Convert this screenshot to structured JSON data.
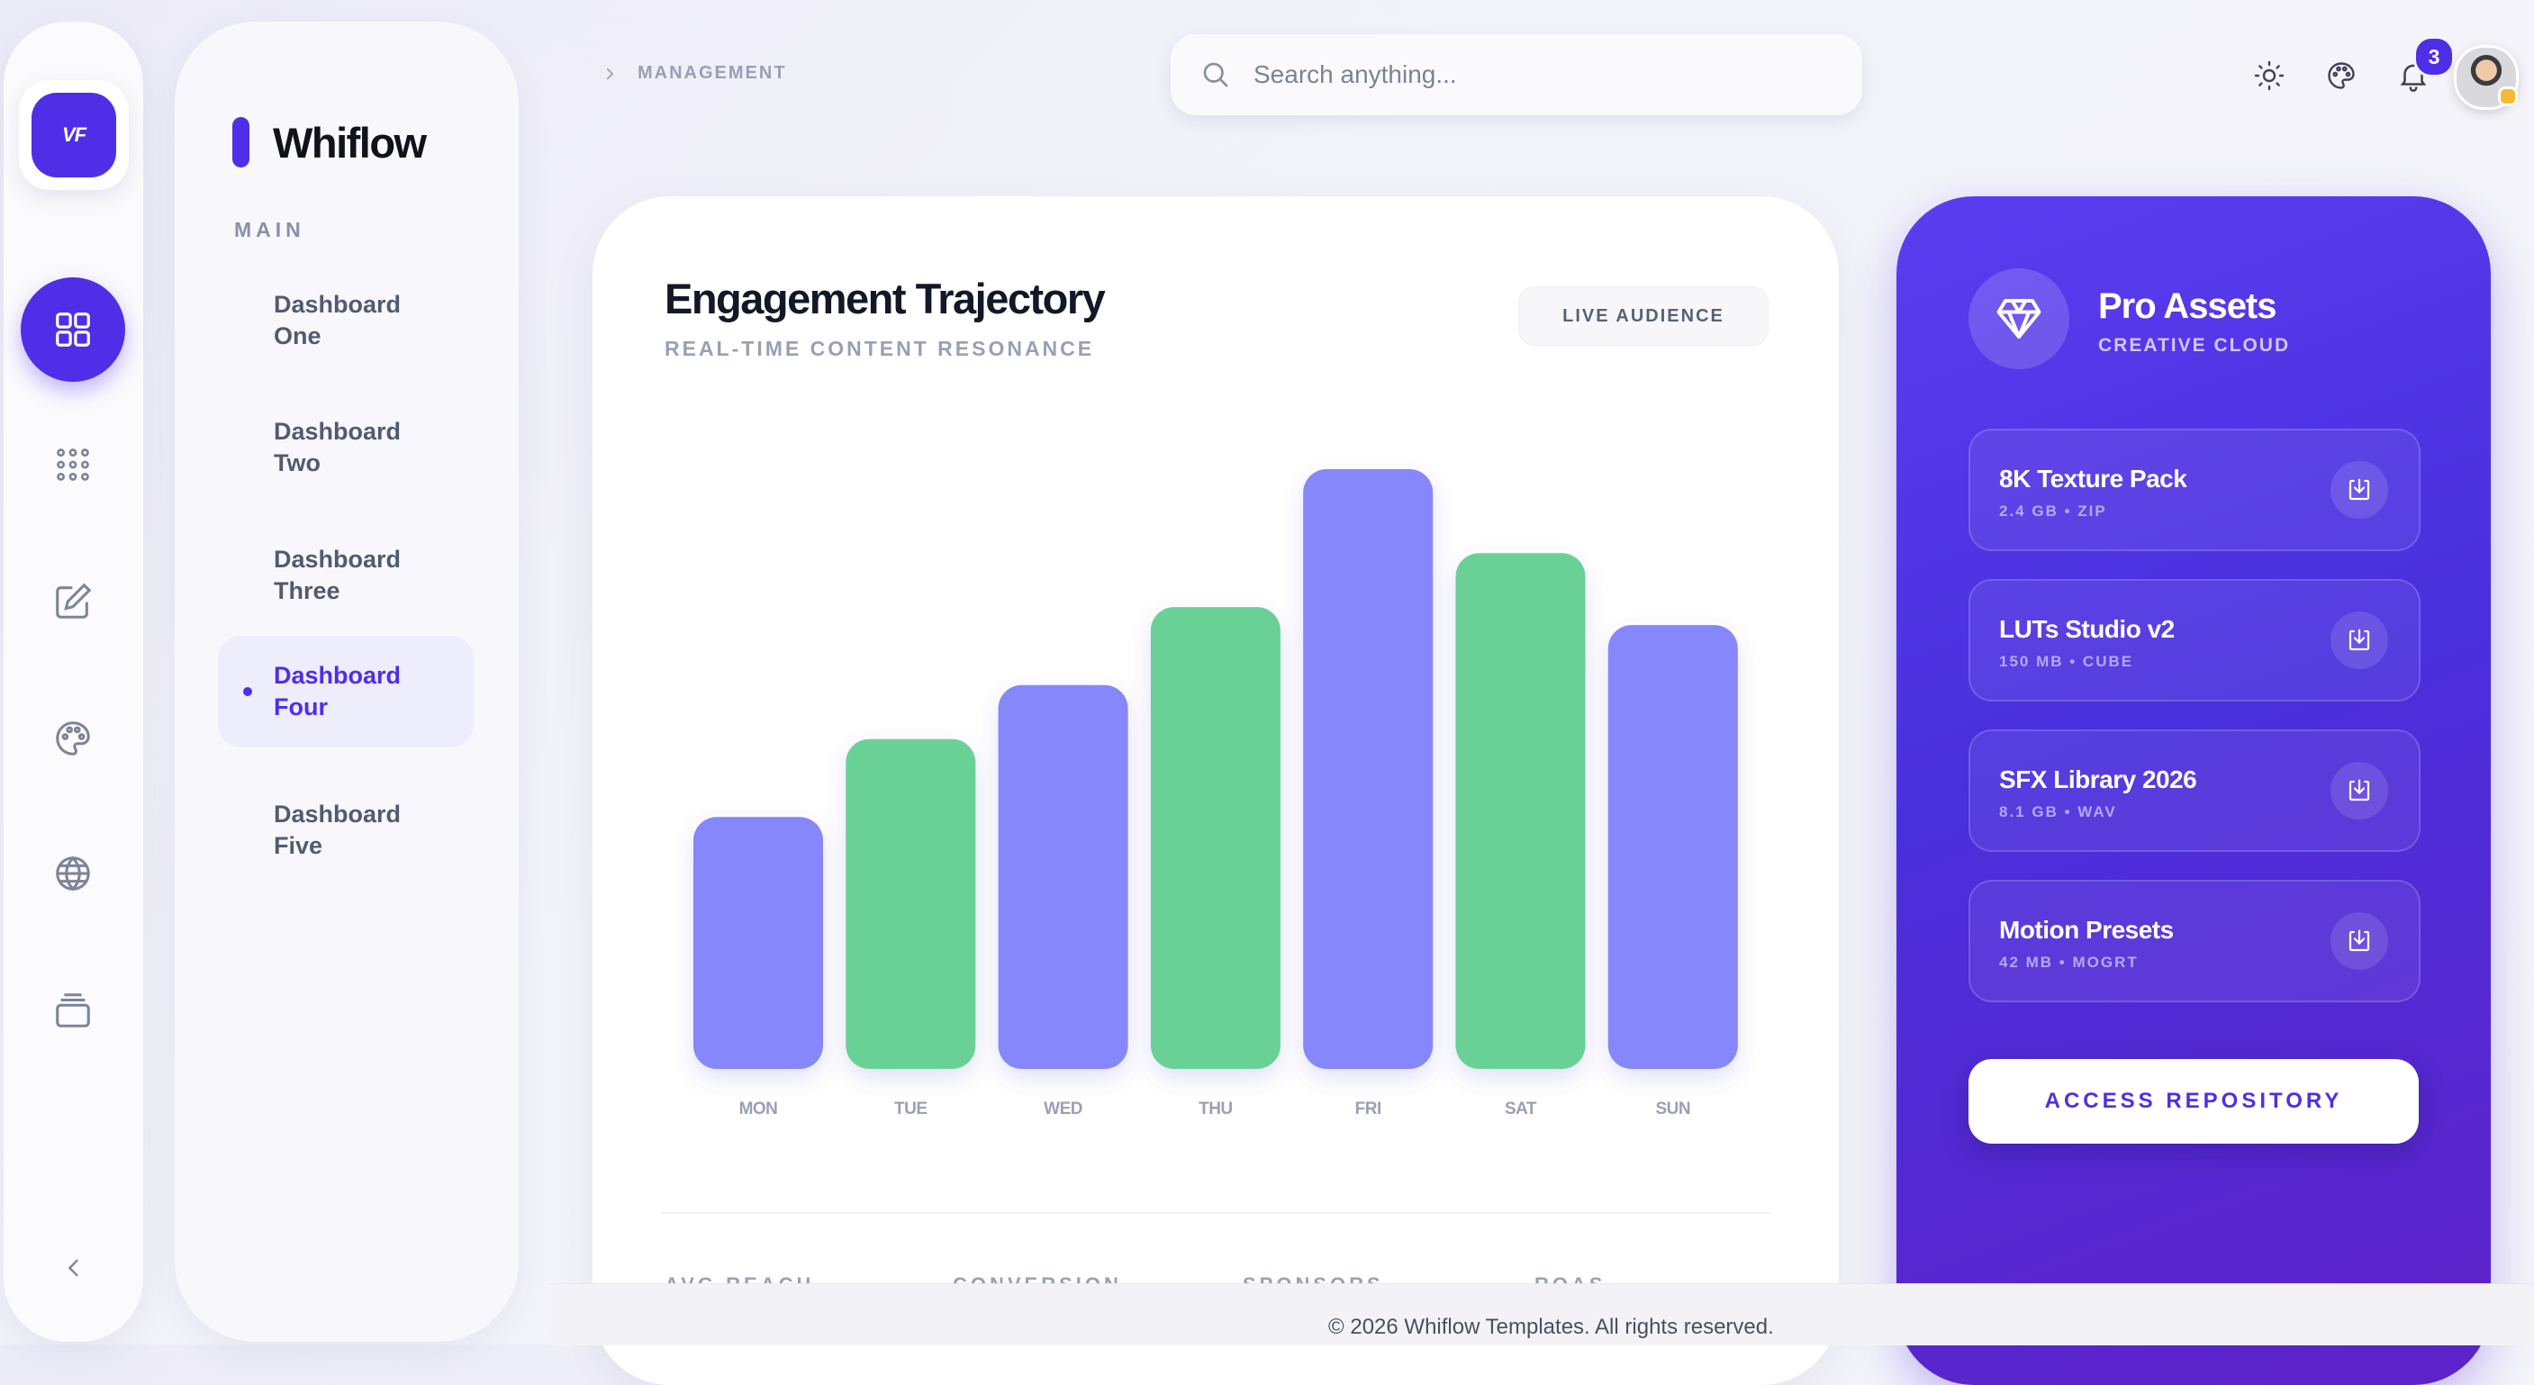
{
  "app": {
    "logo_text": "VF",
    "brand_name": "Whiflow"
  },
  "rail": {
    "items": [
      {
        "icon": "dashboard-grid-icon",
        "active": true
      },
      {
        "icon": "apps-dots-icon",
        "active": false
      },
      {
        "icon": "edit-icon",
        "active": false
      },
      {
        "icon": "palette-icon",
        "active": false
      },
      {
        "icon": "globe-icon",
        "active": false
      },
      {
        "icon": "layers-icon",
        "active": false
      }
    ],
    "collapse_icon": "chevron-left-icon"
  },
  "nav": {
    "section_label": "MAIN",
    "items": [
      {
        "label": "Dashboard One",
        "active": false
      },
      {
        "label": "Dashboard Two",
        "active": false
      },
      {
        "label": "Dashboard Three",
        "active": false
      },
      {
        "label": "Dashboard Four",
        "active": true
      },
      {
        "label": "Dashboard Five",
        "active": false
      }
    ]
  },
  "header": {
    "breadcrumb": "MANAGEMENT",
    "search_placeholder": "Search anything...",
    "notification_count": "3",
    "icons": [
      "sun-icon",
      "palette-icon",
      "bell-icon"
    ]
  },
  "chart_card": {
    "title": "Engagement Trajectory",
    "subtitle": "REAL-TIME CONTENT RESONANCE",
    "filter_label": "LIVE AUDIENCE",
    "stat_labels": [
      "AVG REACH",
      "CONVERSION",
      "SPONSORS",
      "ROAS"
    ]
  },
  "chart_data": {
    "type": "bar",
    "categories": [
      "MON",
      "TUE",
      "WED",
      "THU",
      "FRI",
      "SAT",
      "SUN"
    ],
    "values": [
      42,
      55,
      64,
      77,
      100,
      86,
      74
    ],
    "colors": [
      "#8587fb",
      "#6bd196",
      "#8587fb",
      "#6bd196",
      "#8587fb",
      "#6bd196",
      "#8587fb"
    ],
    "title": "",
    "xlabel": "",
    "ylabel": "",
    "ylim": [
      0,
      100
    ],
    "grid": false
  },
  "pro_assets": {
    "icon": "diamond-icon",
    "title": "Pro Assets",
    "subtitle": "CREATIVE CLOUD",
    "items": [
      {
        "name": "8K Texture Pack",
        "meta": "2.4 GB • ZIP"
      },
      {
        "name": "LUTs Studio v2",
        "meta": "150 MB • CUBE"
      },
      {
        "name": "SFX Library 2026",
        "meta": "8.1 GB • WAV"
      },
      {
        "name": "Motion Presets",
        "meta": "42 MB • MOGRT"
      }
    ],
    "button_label": "ACCESS REPOSITORY"
  },
  "footer": {
    "text": "© 2026 Whiflow Templates. All rights reserved."
  },
  "colors": {
    "accent": "#4f2ee8",
    "bar_purple": "#8587fb",
    "bar_green": "#6bd196"
  }
}
